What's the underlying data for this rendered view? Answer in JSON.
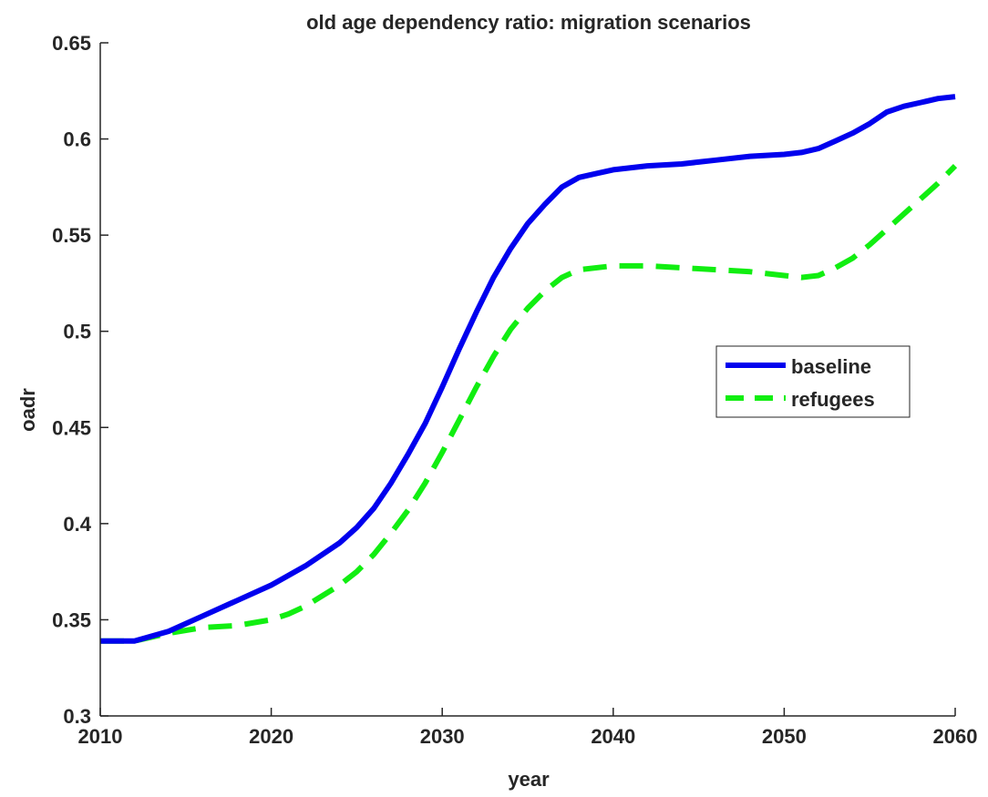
{
  "chart_data": {
    "type": "line",
    "title": "old age dependency ratio: migration scenarios",
    "xlabel": "year",
    "ylabel": "oadr",
    "xlim": [
      2010,
      2060
    ],
    "ylim": [
      0.3,
      0.65
    ],
    "xticks": [
      "2010",
      "2020",
      "2030",
      "2040",
      "2050",
      "2060"
    ],
    "yticks": [
      "0.3",
      "0.35",
      "0.4",
      "0.45",
      "0.5",
      "0.55",
      "0.6",
      "0.65"
    ],
    "grid": false,
    "legend_position": "right",
    "series": [
      {
        "name": "baseline",
        "color": "#0000ee",
        "line_style": "solid",
        "x": [
          2010,
          2012,
          2014,
          2016,
          2018,
          2020,
          2022,
          2024,
          2025,
          2026,
          2027,
          2028,
          2029,
          2030,
          2031,
          2032,
          2033,
          2034,
          2035,
          2036,
          2037,
          2038,
          2039,
          2040,
          2042,
          2044,
          2045,
          2046,
          2048,
          2050,
          2051,
          2052,
          2053,
          2054,
          2055,
          2056,
          2057,
          2058,
          2059,
          2060
        ],
        "y": [
          0.339,
          0.339,
          0.344,
          0.352,
          0.36,
          0.368,
          0.378,
          0.39,
          0.398,
          0.408,
          0.421,
          0.436,
          0.452,
          0.471,
          0.491,
          0.51,
          0.528,
          0.543,
          0.556,
          0.566,
          0.575,
          0.58,
          0.582,
          0.584,
          0.586,
          0.587,
          0.588,
          0.589,
          0.591,
          0.592,
          0.593,
          0.595,
          0.599,
          0.603,
          0.608,
          0.614,
          0.617,
          0.619,
          0.621,
          0.622
        ]
      },
      {
        "name": "refugees",
        "color": "#11ee11",
        "line_style": "dashed",
        "x": [
          2010,
          2012,
          2014,
          2016,
          2018,
          2020,
          2021,
          2022,
          2024,
          2025,
          2026,
          2027,
          2028,
          2029,
          2030,
          2031,
          2032,
          2033,
          2034,
          2035,
          2036,
          2037,
          2038,
          2040,
          2042,
          2044,
          2046,
          2048,
          2050,
          2051,
          2052,
          2053,
          2054,
          2055,
          2056,
          2057,
          2058,
          2059,
          2060
        ],
        "y": [
          0.339,
          0.339,
          0.343,
          0.346,
          0.347,
          0.35,
          0.353,
          0.357,
          0.368,
          0.375,
          0.384,
          0.395,
          0.407,
          0.421,
          0.437,
          0.454,
          0.471,
          0.487,
          0.501,
          0.512,
          0.521,
          0.528,
          0.532,
          0.534,
          0.534,
          0.533,
          0.532,
          0.531,
          0.529,
          0.528,
          0.529,
          0.533,
          0.538,
          0.545,
          0.553,
          0.561,
          0.569,
          0.577,
          0.586
        ]
      }
    ]
  }
}
